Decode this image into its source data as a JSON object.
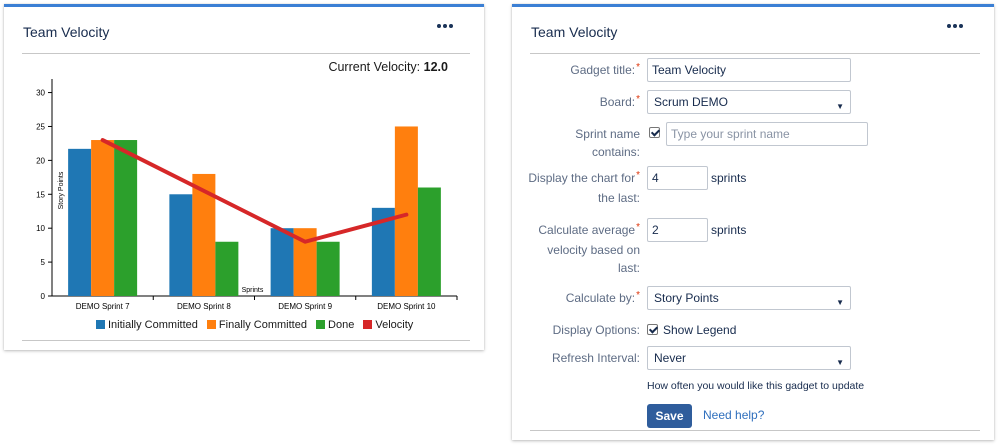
{
  "colors": {
    "initially_committed": "#1f77b4",
    "finally_committed": "#ff7f0e",
    "done": "#2ca02c",
    "velocity": "#d62728",
    "header_accent": "#3b7fd4",
    "save_button": "#2f5d9c",
    "link": "#2f6fbd",
    "required": "#de350b"
  },
  "left_gadget": {
    "title": "Team Velocity",
    "more_icon": "more-horizontal-icon",
    "velocity_label": "Current Velocity:",
    "velocity_value": "12.0",
    "legend": [
      {
        "label": "Initially Committed",
        "color": "#1f77b4"
      },
      {
        "label": "Finally Committed",
        "color": "#ff7f0e"
      },
      {
        "label": "Done",
        "color": "#2ca02c"
      },
      {
        "label": "Velocity",
        "color": "#d62728"
      }
    ]
  },
  "chart_data": {
    "type": "bar",
    "categories": [
      "DEMO Sprint 7",
      "DEMO Sprint 8",
      "DEMO Sprint 9",
      "DEMO Sprint 10"
    ],
    "series": [
      {
        "name": "Initially Committed",
        "values": [
          21.7,
          15,
          10,
          13
        ]
      },
      {
        "name": "Finally Committed",
        "values": [
          23,
          18,
          10,
          25
        ]
      },
      {
        "name": "Done",
        "values": [
          23,
          8,
          8,
          16
        ]
      }
    ],
    "line_series": {
      "name": "Velocity",
      "values": [
        23,
        15.5,
        8,
        12
      ]
    },
    "xlabel": "Sprints",
    "ylabel": "Story Points",
    "ylim": [
      0,
      32
    ],
    "yticks": [
      0,
      5,
      10,
      15,
      20,
      25,
      30
    ],
    "legend_position": "bottom",
    "grid": false
  },
  "right_gadget": {
    "title": "Team Velocity",
    "more_icon": "more-horizontal-icon",
    "fields": {
      "gadget_title_label": "Gadget title:",
      "gadget_title_value": "Team Velocity",
      "board_label": "Board:",
      "board_value": "Scrum DEMO",
      "sprint_name_label_1": "Sprint name",
      "sprint_name_label_2": "contains:",
      "sprint_name_checked": true,
      "sprint_name_placeholder": "Type your sprint name",
      "display_chart_label_1": "Display the chart for",
      "display_chart_label_2": "the last:",
      "display_chart_value": "4",
      "display_chart_unit": "sprints",
      "avg_velocity_label_1": "Calculate average",
      "avg_velocity_label_2": "velocity based on",
      "avg_velocity_label_3": "last:",
      "avg_velocity_value": "2",
      "avg_velocity_unit": "sprints",
      "calculate_by_label": "Calculate by:",
      "calculate_by_value": "Story Points",
      "display_options_label": "Display Options:",
      "show_legend_checked": true,
      "show_legend_label": "Show Legend",
      "refresh_label": "Refresh Interval:",
      "refresh_value": "Never",
      "refresh_hint": "How often you would like this gadget to update"
    },
    "save_label": "Save",
    "help_label": "Need help?"
  }
}
